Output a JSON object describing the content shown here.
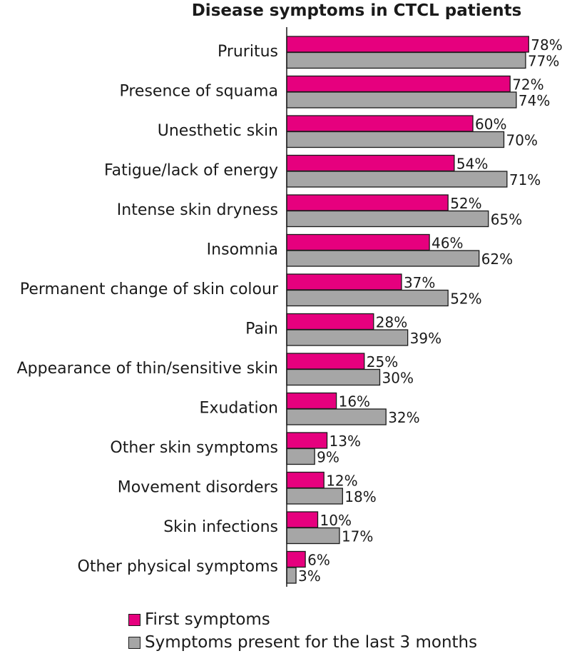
{
  "chart_data": {
    "type": "bar",
    "orientation": "horizontal",
    "title": "Disease symptoms in CTCL patients",
    "categories": [
      "Pruritus",
      "Presence of squama",
      "Unesthetic skin",
      "Fatigue/lack of energy",
      "Intense skin dryness",
      "Insomnia",
      "Permanent change of skin colour",
      "Pain",
      "Appearance of thin/sensitive skin",
      "Exudation",
      "Other skin symptoms",
      "Movement disorders",
      "Skin infections",
      "Other physical symptoms"
    ],
    "series": [
      {
        "name": "First symptoms",
        "color": "#e6007e",
        "values": [
          78,
          72,
          60,
          54,
          52,
          46,
          37,
          28,
          25,
          16,
          13,
          12,
          10,
          6
        ]
      },
      {
        "name": "Symptoms present for the last 3 months",
        "color": "#a6a6a6",
        "values": [
          77,
          74,
          70,
          71,
          65,
          62,
          52,
          39,
          30,
          32,
          9,
          18,
          17,
          3
        ]
      }
    ],
    "value_suffix": "%",
    "xlim": [
      0,
      100
    ],
    "grid": false,
    "legend_position": "bottom"
  }
}
